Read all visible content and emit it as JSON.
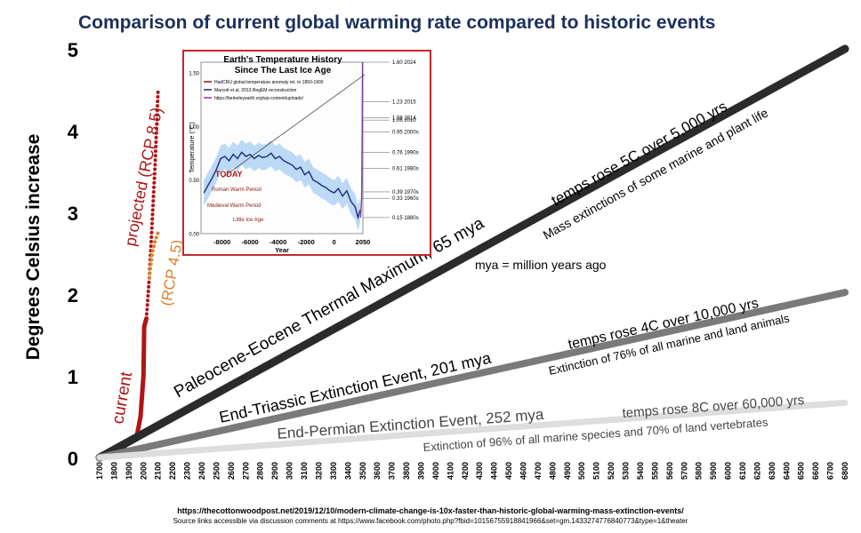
{
  "title": "Comparison of current global warming rate compared to historic events",
  "chart_data": {
    "type": "line",
    "ylabel": "Degrees Celsius increase",
    "ylim": [
      0,
      5
    ],
    "yticks": [
      0,
      1,
      2,
      3,
      4,
      5
    ],
    "xlim": [
      1700,
      6800
    ],
    "xticks": [
      1700,
      1800,
      1900,
      2000,
      2100,
      2200,
      2300,
      2400,
      2500,
      2600,
      2700,
      2800,
      2900,
      3000,
      3100,
      3200,
      3300,
      3400,
      3500,
      3600,
      3700,
      3800,
      3900,
      4000,
      4100,
      4200,
      4300,
      4400,
      4500,
      4600,
      4700,
      4800,
      4900,
      5000,
      5100,
      5200,
      5300,
      5400,
      5500,
      5600,
      5700,
      5800,
      5900,
      6000,
      6100,
      6200,
      6300,
      6400,
      6500,
      6600,
      6700,
      6800
    ],
    "series": [
      {
        "name": "current",
        "color": "#b01515",
        "style": "solid",
        "x": [
          1760,
          1820,
          1880,
          1950,
          1980,
          2000,
          2005,
          2020
        ],
        "y": [
          0,
          0.05,
          0.15,
          0.22,
          0.5,
          1.0,
          1.6,
          1.7
        ]
      },
      {
        "name": "projected (RCP 8.5)",
        "color": "#b01515",
        "style": "dotted",
        "x": [
          2020,
          2040,
          2060,
          2080,
          2100
        ],
        "y": [
          1.7,
          2.2,
          2.9,
          3.6,
          4.5
        ]
      },
      {
        "name": "(RCP 4.5)",
        "color": "#d9822b",
        "style": "dotted",
        "x": [
          2040,
          2060,
          2080,
          2100
        ],
        "y": [
          2.2,
          2.5,
          2.65,
          2.75
        ]
      },
      {
        "name": "Paleocene-Eocene Thermal Maximum, 65 mya",
        "color": "#2b2b2b",
        "style": "solid",
        "x": [
          1700,
          6800
        ],
        "y": [
          0,
          5
        ]
      },
      {
        "name": "End-Triassic Extinction Event, 201 mya",
        "color": "#7a7a7a",
        "style": "solid",
        "x": [
          1700,
          6800
        ],
        "y": [
          0,
          2.02
        ]
      },
      {
        "name": "End-Permian Extinction Event, 252 mya",
        "color": "#dddddd",
        "style": "solid",
        "x": [
          1700,
          6800
        ],
        "y": [
          0,
          0.67
        ]
      }
    ],
    "annotations": {
      "current": "current",
      "rcp85": "projected (RCP 8.5)",
      "rcp45": "(RCP 4.5)",
      "petm": "Paleocene-Eocene Thermal Maximum, 65 mya",
      "petm_rate": "temps rose 5C over 5,000 yrs",
      "petm_effect": "Mass extinctions of some marine and plant life",
      "mya": "mya = million years ago",
      "triassic": "End-Triassic Extinction Event, 201 mya",
      "triassic_rate": "temps rose 4C over 10,000 yrs",
      "triassic_effect": "Extinction of 76% of all marine and land animals",
      "permian": "End-Permian Extinction Event, 252 mya",
      "permian_rate": "temps rose 8C over 60,000 yrs",
      "permian_effect": "Extinction of 96% of all marine species and 70% of land vertebrates"
    },
    "inset": {
      "title_line1": "Earth's Temperature History",
      "title_line2": "Since The Last Ice Age",
      "xlabel": "Year",
      "ylabel": "Temperature (°C)",
      "xlim": [
        -9500,
        2050
      ],
      "ylim": [
        0,
        1.6
      ],
      "xticks": [
        -8000,
        -6000,
        -4000,
        -2000,
        0,
        2050
      ],
      "yticks": [
        0.0,
        0.5,
        1.0,
        1.5
      ],
      "ytick_labels": [
        "0.00",
        "0.50",
        "1.00",
        "1.50"
      ],
      "legend": [
        {
          "label": "HadCRU global temperature anomaly rel. to 1850-1900",
          "color": "#8b1a1a"
        },
        {
          "label": "Marcott et al. 2013 RegEM reconstruction",
          "color": "#1c2a7a"
        },
        {
          "label": "https://berkeleyearth.org/wp-content/uploads/",
          "color": "#7b3fa0"
        }
      ],
      "reconstruction": {
        "x": [
          -9300,
          -9000,
          -8700,
          -8400,
          -8100,
          -7800,
          -7500,
          -7200,
          -6900,
          -6600,
          -6300,
          -6000,
          -5700,
          -5400,
          -5100,
          -4800,
          -4500,
          -4200,
          -3900,
          -3600,
          -3300,
          -3000,
          -2700,
          -2400,
          -2100,
          -1800,
          -1500,
          -1200,
          -900,
          -600,
          -300,
          0,
          300,
          600,
          900,
          1200,
          1500,
          1700,
          1850
        ],
        "y": [
          0.38,
          0.45,
          0.52,
          0.6,
          0.7,
          0.72,
          0.68,
          0.74,
          0.7,
          0.76,
          0.72,
          0.74,
          0.7,
          0.73,
          0.71,
          0.72,
          0.75,
          0.7,
          0.72,
          0.68,
          0.66,
          0.64,
          0.6,
          0.62,
          0.55,
          0.58,
          0.5,
          0.48,
          0.45,
          0.43,
          0.4,
          0.38,
          0.42,
          0.35,
          0.4,
          0.3,
          0.25,
          0.15,
          0.22
        ]
      },
      "instrumental": {
        "x": [
          1880,
          1960,
          2000,
          2024
        ],
        "y": [
          0.15,
          0.33,
          0.95,
          1.6
        ]
      },
      "labels": {
        "today": "TODAY",
        "roman": "Roman Warm Period",
        "medieval": "Medieval Warm Period",
        "little_ice": "Little Ice Age"
      },
      "right_labels": [
        {
          "value": 1.6,
          "label": "1.60  2024"
        },
        {
          "value": 1.23,
          "label": "1.23  2015"
        },
        {
          "value": 1.08,
          "label": "1.08  2014"
        },
        {
          "value": 1.06,
          "label": "1.06  2010"
        },
        {
          "value": 0.95,
          "label": "0.95  2000s"
        },
        {
          "value": 0.76,
          "label": "0.76  1990s"
        },
        {
          "value": 0.61,
          "label": "0.61  1980s"
        },
        {
          "value": 0.39,
          "label": "0.39  1970s"
        },
        {
          "value": 0.33,
          "label": "0.33  1960s"
        },
        {
          "value": 0.15,
          "label": "0.15  1880s"
        }
      ]
    }
  },
  "source_line1": "https://thecottonwoodpost.net/2019/12/10/modern-climate-change-is-10x-faster-than-historic-global-warming-mass-extinction-events/",
  "source_line2": "Source links accessible via discussion comments at   https://www.facebook.com/photo.php?fbid=10156755918841966&set=gm.1433274776840773&type=1&theater"
}
